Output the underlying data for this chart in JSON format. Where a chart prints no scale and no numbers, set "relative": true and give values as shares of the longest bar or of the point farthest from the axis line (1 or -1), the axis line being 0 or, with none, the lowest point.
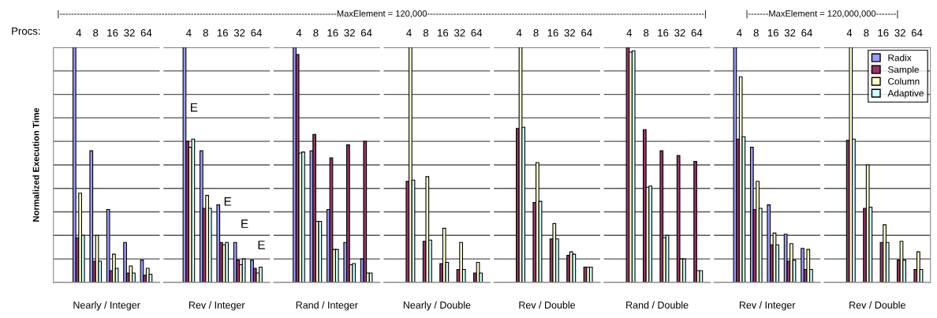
{
  "chart_data": [
    {
      "type": "bar",
      "relative": true,
      "categories": [
        "4",
        "8",
        "16",
        "32",
        "64"
      ],
      "xlabel": "Nearly / Integer",
      "ylabel": "Normalized Execution Time",
      "grid": "y",
      "tick_labels": "x",
      "legend": false,
      "annotations": [
        "Procs:",
        "|-----------------------------------------------------------------------------------------------MaxElement = 120,000-----------------------------------------------------------------------------------------------|"
      ],
      "series": [
        {
          "color": "#9999ff",
          "values": [
            1.0,
            0.56,
            0.31,
            0.17,
            0.095
          ]
        },
        {
          "color": "#993366",
          "values": [
            0.19,
            0.09,
            0.05,
            0.04,
            0.03
          ]
        },
        {
          "color": "#ffffcc",
          "values": [
            0.38,
            0.2,
            0.12,
            0.07,
            0.06
          ]
        },
        {
          "color": "#ccffff",
          "values": [
            0.2,
            0.09,
            0.06,
            0.04,
            0.035
          ]
        }
      ]
    },
    {
      "type": "bar",
      "relative": true,
      "categories": [
        "4",
        "8",
        "16",
        "32",
        "64"
      ],
      "xlabel": "Rev / Integer",
      "grid": "y",
      "tick_labels": "x",
      "legend": false,
      "annotations": [
        "E",
        "E",
        "E",
        "E"
      ],
      "series": [
        {
          "color": "#9999ff",
          "values": [
            1.0,
            0.56,
            0.33,
            0.17,
            0.095
          ]
        },
        {
          "color": "#993366",
          "values": [
            0.6,
            0.315,
            0.17,
            0.095,
            0.06
          ]
        },
        {
          "color": "#ffffcc",
          "values": [
            0.575,
            0.37,
            0.16,
            0.075,
            0.04
          ]
        },
        {
          "color": "#ccffff",
          "values": [
            0.61,
            0.315,
            0.17,
            0.1,
            0.065
          ]
        }
      ]
    },
    {
      "type": "bar",
      "relative": true,
      "categories": [
        "4",
        "8",
        "16",
        "32",
        "64"
      ],
      "xlabel": "Rand / Integer",
      "grid": "y",
      "tick_labels": "x",
      "legend": false,
      "series": [
        {
          "color": "#9999ff",
          "values": [
            1.0,
            0.56,
            0.31,
            0.17,
            0.1
          ]
        },
        {
          "color": "#993366",
          "values": [
            0.97,
            0.63,
            0.53,
            0.585,
            0.6
          ]
        },
        {
          "color": "#ffffcc",
          "values": [
            0.55,
            0.26,
            0.14,
            0.075,
            0.04
          ]
        },
        {
          "color": "#ccffff",
          "values": [
            0.555,
            0.26,
            0.14,
            0.08,
            0.04
          ]
        }
      ]
    },
    {
      "type": "bar",
      "relative": true,
      "categories": [
        "4",
        "8",
        "16",
        "32",
        "64"
      ],
      "xlabel": "Nearly / Double",
      "grid": "y",
      "tick_labels": "x",
      "legend": false,
      "series": [
        {
          "color": "#9999ff",
          "values": [
            null,
            null,
            null,
            null,
            null
          ]
        },
        {
          "color": "#993366",
          "values": [
            0.43,
            0.175,
            0.08,
            0.055,
            0.04
          ]
        },
        {
          "color": "#ffffcc",
          "values": [
            1.0,
            0.45,
            0.23,
            0.17,
            0.085
          ]
        },
        {
          "color": "#ccffff",
          "values": [
            0.435,
            0.18,
            0.085,
            0.055,
            0.04
          ]
        }
      ]
    },
    {
      "type": "bar",
      "relative": true,
      "categories": [
        "4",
        "8",
        "16",
        "32",
        "64"
      ],
      "xlabel": "Rev / Double",
      "grid": "y",
      "tick_labels": "x",
      "legend": false,
      "series": [
        {
          "color": "#9999ff",
          "values": [
            null,
            null,
            null,
            null,
            null
          ]
        },
        {
          "color": "#993366",
          "values": [
            0.655,
            0.34,
            0.185,
            0.115,
            0.065
          ]
        },
        {
          "color": "#ffffcc",
          "values": [
            1.0,
            0.51,
            0.25,
            0.13,
            0.065
          ]
        },
        {
          "color": "#ccffff",
          "values": [
            0.66,
            0.345,
            0.185,
            0.12,
            0.065
          ]
        }
      ]
    },
    {
      "type": "bar",
      "relative": true,
      "categories": [
        "4",
        "8",
        "16",
        "32",
        "64"
      ],
      "xlabel": "Rand / Double",
      "grid": "y",
      "tick_labels": "x",
      "legend": false,
      "series": [
        {
          "color": "#9999ff",
          "values": [
            null,
            null,
            null,
            null,
            null
          ]
        },
        {
          "color": "#993366",
          "values": [
            1.0,
            0.65,
            0.56,
            0.54,
            0.515
          ]
        },
        {
          "color": "#ffffcc",
          "values": [
            0.98,
            0.405,
            0.19,
            0.1,
            0.05
          ]
        },
        {
          "color": "#ccffff",
          "values": [
            0.985,
            0.41,
            0.2,
            0.1,
            0.05
          ]
        }
      ]
    },
    {
      "type": "bar",
      "relative": true,
      "categories": [
        "4",
        "8",
        "16",
        "32",
        "64"
      ],
      "xlabel": "Rev / Integer",
      "grid": "y",
      "tick_labels": "x",
      "legend": false,
      "annotations": [
        "|-------MaxElement = 120,000,000-------|"
      ],
      "series": [
        {
          "color": "#9999ff",
          "values": [
            1.0,
            0.575,
            0.33,
            0.205,
            0.145
          ]
        },
        {
          "color": "#993366",
          "values": [
            0.61,
            0.31,
            0.16,
            0.09,
            0.055
          ]
        },
        {
          "color": "#ffffcc",
          "values": [
            0.875,
            0.43,
            0.21,
            0.165,
            0.14
          ]
        },
        {
          "color": "#ccffff",
          "values": [
            0.62,
            0.315,
            0.16,
            0.095,
            0.055
          ]
        }
      ]
    },
    {
      "type": "bar",
      "relative": true,
      "categories": [
        "4",
        "8",
        "16",
        "32",
        "64"
      ],
      "xlabel": "Rev / Double",
      "grid": "y",
      "tick_labels": "x",
      "legend": "top right",
      "series": [
        {
          "name": "Radix",
          "color": "#9999ff",
          "values": [
            null,
            null,
            null,
            null,
            null
          ]
        },
        {
          "name": "Sample",
          "color": "#993366",
          "values": [
            0.605,
            0.315,
            0.17,
            0.095,
            0.055
          ]
        },
        {
          "name": "Column",
          "color": "#ffffcc",
          "values": [
            1.0,
            0.5,
            0.245,
            0.175,
            0.13
          ]
        },
        {
          "name": "Adaptive",
          "color": "#ccffff",
          "values": [
            0.61,
            0.32,
            0.17,
            0.095,
            0.055
          ]
        }
      ]
    }
  ]
}
